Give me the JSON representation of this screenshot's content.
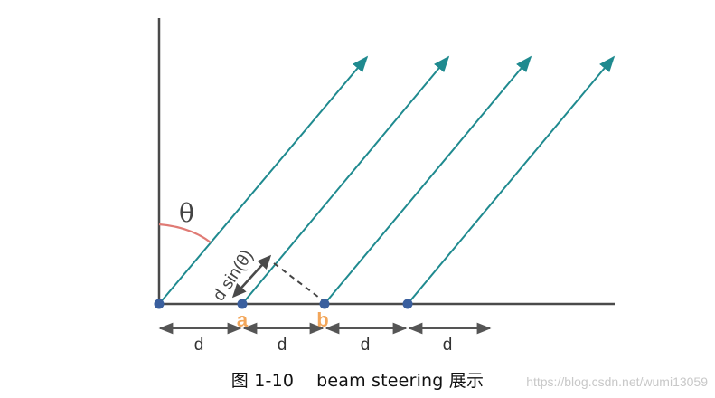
{
  "diagram": {
    "theta_label": "θ",
    "dsin_label": "d sin(θ)",
    "point_a_label": "a",
    "point_b_label": "b",
    "spacing_labels": [
      "d",
      "d",
      "d",
      "d"
    ],
    "colors": {
      "axis": "#4a4a4a",
      "ray": "#1f8a8f",
      "arc": "#e07b75",
      "dot": "#3a5f9e",
      "point_label": "#f2a65a",
      "dimension": "#555555"
    }
  },
  "caption": {
    "text": "图 1-10    beam steering 展示"
  },
  "watermark": {
    "text": "https://blog.csdn.net/wumi13059"
  }
}
